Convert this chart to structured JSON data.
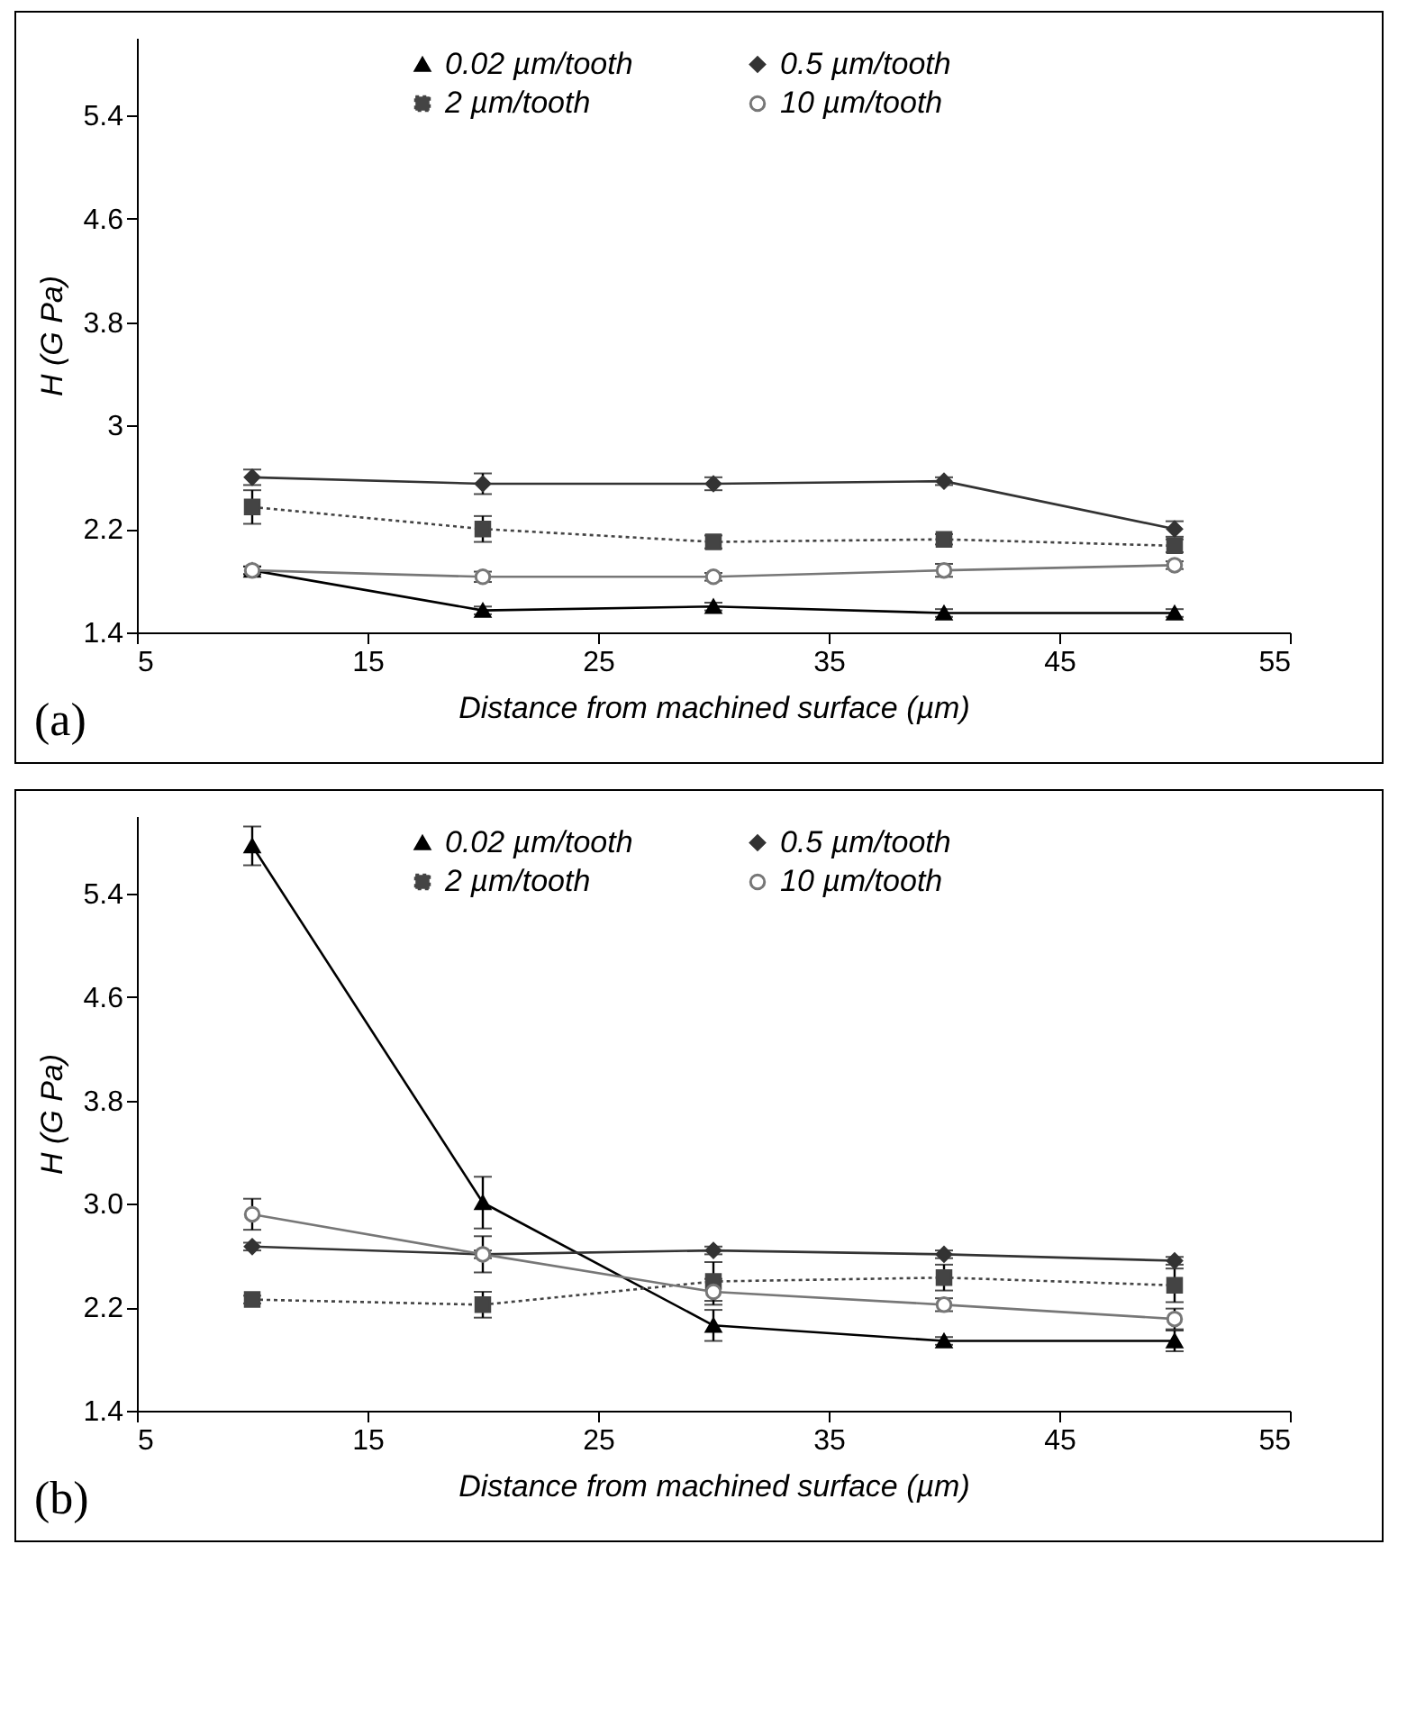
{
  "chart_data": [
    {
      "type": "line",
      "xlabel": "Distance from machined surface (µm)",
      "ylabel": "H (G Pa)",
      "annotations": [
        "(a)"
      ],
      "legend": "top",
      "grid": false,
      "x": [
        10,
        20,
        30,
        40,
        50
      ],
      "xlim": [
        5,
        55
      ],
      "xticks": [
        5,
        15,
        25,
        35,
        45,
        55
      ],
      "ylim": [
        1.4,
        6.0
      ],
      "yticks": [
        1.4,
        2.2,
        3,
        3.8,
        4.6,
        5.4
      ],
      "series": [
        {
          "name": "0.02 µm/tooth",
          "color": "#000000",
          "marker": "triangle",
          "line_style": "solid",
          "values": [
            1.88,
            1.57,
            1.6,
            1.55,
            1.55
          ],
          "errors": [
            0.03,
            0.03,
            0.03,
            0.03,
            0.03
          ]
        },
        {
          "name": "0.5 µm/tooth",
          "color": "#333333",
          "marker": "diamond",
          "line_style": "solid",
          "values": [
            2.6,
            2.55,
            2.55,
            2.57,
            2.2
          ],
          "errors": [
            0.06,
            0.08,
            0.05,
            0.03,
            0.06
          ]
        },
        {
          "name": "2 µm/tooth",
          "color": "#444444",
          "marker": "square",
          "line_style": "dotted",
          "values": [
            2.37,
            2.2,
            2.1,
            2.12,
            2.07
          ],
          "errors": [
            0.13,
            0.1,
            0.05,
            0.04,
            0.05
          ]
        },
        {
          "name": "10 µm/tooth",
          "color": "#777777",
          "marker": "circle",
          "line_style": "solid",
          "values": [
            1.88,
            1.83,
            1.83,
            1.88,
            1.92
          ],
          "errors": [
            0.03,
            0.04,
            0.03,
            0.05,
            0.03
          ]
        }
      ]
    },
    {
      "type": "line",
      "xlabel": "Distance from machined surface (µm)",
      "ylabel": "H (G Pa)",
      "annotations": [
        "(b)"
      ],
      "legend": "top",
      "grid": false,
      "x": [
        10,
        20,
        30,
        40,
        50
      ],
      "xlim": [
        5,
        55
      ],
      "xticks": [
        5,
        15,
        25,
        35,
        45,
        55
      ],
      "ylim": [
        1.4,
        6.0
      ],
      "yticks": [
        1.4,
        2.2,
        {
          "value": 3,
          "label": "3.0"
        },
        3.8,
        4.6,
        5.4
      ],
      "series": [
        {
          "name": "0.02 µm/tooth",
          "color": "#000000",
          "marker": "triangle",
          "line_style": "solid",
          "values": [
            5.77,
            3.01,
            2.06,
            1.94,
            1.94
          ],
          "errors": [
            0.15,
            0.2,
            0.12,
            0.03,
            0.08
          ]
        },
        {
          "name": "0.5 µm/tooth",
          "color": "#333333",
          "marker": "diamond",
          "line_style": "solid",
          "values": [
            2.67,
            2.61,
            2.64,
            2.61,
            2.56
          ],
          "errors": [
            0.03,
            0.03,
            0.03,
            0.03,
            0.03
          ]
        },
        {
          "name": "2 µm/tooth",
          "color": "#444444",
          "marker": "square",
          "line_style": "dotted",
          "values": [
            2.26,
            2.22,
            2.4,
            2.43,
            2.37
          ],
          "errors": [
            0.03,
            0.1,
            0.15,
            0.1,
            0.13
          ]
        },
        {
          "name": "10 µm/tooth",
          "color": "#777777",
          "marker": "circle",
          "line_style": "solid",
          "values": [
            2.92,
            2.61,
            2.32,
            2.22,
            2.11
          ],
          "errors": [
            0.12,
            0.14,
            0.1,
            0.05,
            0.08
          ]
        }
      ]
    }
  ]
}
